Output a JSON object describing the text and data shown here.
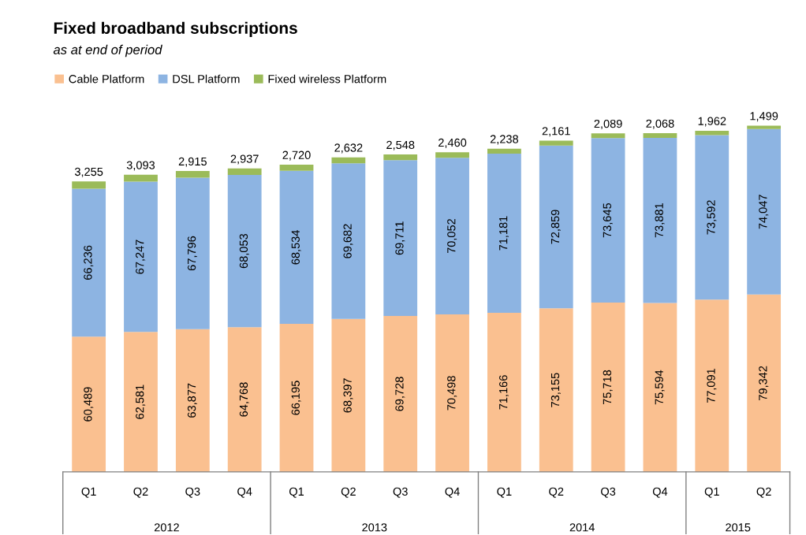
{
  "chart_data": {
    "type": "bar",
    "stacked": true,
    "title": "Fixed broadband subscriptions",
    "subtitle": "as at end of period",
    "categories": [
      "Q1",
      "Q2",
      "Q3",
      "Q4",
      "Q1",
      "Q2",
      "Q3",
      "Q4",
      "Q1",
      "Q2",
      "Q3",
      "Q4",
      "Q1",
      "Q2"
    ],
    "annotations": [
      "2012",
      "2013",
      "2014",
      "2015"
    ],
    "series": [
      {
        "name": "Cable Platform",
        "color": "#fac090",
        "values": [
          60489,
          62581,
          63877,
          64768,
          66195,
          68397,
          69728,
          70498,
          71166,
          73155,
          75718,
          75594,
          77091,
          79342
        ],
        "value_labels": [
          "60,489",
          "62,581",
          "63,877",
          "64,768",
          "66,195",
          "68,397",
          "69,728",
          "70,498",
          "71,166",
          "73,155",
          "75,718",
          "75,594",
          "77,091",
          "79,342"
        ]
      },
      {
        "name": "DSL Platform",
        "color": "#8db4e2",
        "values": [
          66236,
          67247,
          67796,
          68053,
          68534,
          69682,
          69711,
          70052,
          71181,
          72859,
          73645,
          73881,
          73592,
          74047
        ],
        "value_labels": [
          "66,236",
          "67,247",
          "67,796",
          "68,053",
          "68,534",
          "69,682",
          "69,711",
          "70,052",
          "71,181",
          "72,859",
          "73,645",
          "73,881",
          "73,592",
          "74,047"
        ]
      },
      {
        "name": "Fixed wireless Platform",
        "color": "#9bbb59",
        "values": [
          3255,
          3093,
          2915,
          2937,
          2720,
          2632,
          2548,
          2460,
          2238,
          2161,
          2089,
          2068,
          1962,
          1499
        ],
        "value_labels": [
          "3,255",
          "3,093",
          "2,915",
          "2,937",
          "2,720",
          "2,632",
          "2,548",
          "2,460",
          "2,238",
          "2,161",
          "2,089",
          "2,068",
          "1,962",
          "1,499"
        ]
      }
    ],
    "legend": "top left",
    "grid": false
  }
}
